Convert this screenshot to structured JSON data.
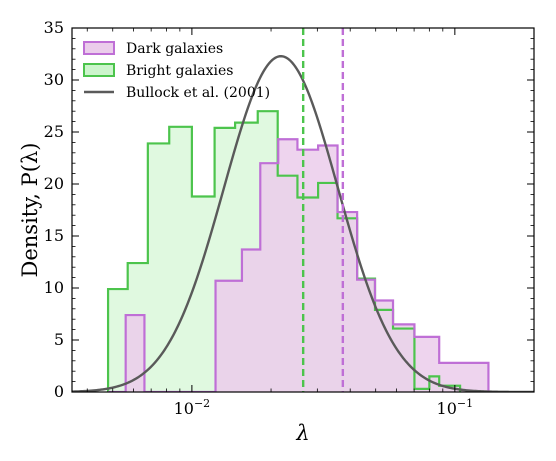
{
  "chart_data": {
    "type": "histogram",
    "xlabel": "λ",
    "ylabel": "Density, P(λ)",
    "xscale": "log",
    "xlim": [
      0.0035,
      0.2
    ],
    "ylim": [
      0,
      35
    ],
    "yticks": [
      0,
      5,
      10,
      15,
      20,
      25,
      30,
      35
    ],
    "xticks": [
      {
        "value": 0.01,
        "base": "10",
        "exp": "−2"
      },
      {
        "value": 0.1,
        "base": "10",
        "exp": "−1"
      }
    ],
    "legend_position": "top-left",
    "series": [
      {
        "name": "Dark galaxies",
        "color": "#bf6fd6",
        "fill": "#ebcdeb",
        "bin_edges": [
          0.0048,
          0.0056,
          0.0066,
          0.0103,
          0.0123,
          0.0155,
          0.0182,
          0.0213,
          0.0252,
          0.0302,
          0.0358,
          0.0425,
          0.0497,
          0.0582,
          0.0702,
          0.0872,
          0.1047,
          0.1342
        ],
        "densities": [
          0.0,
          7.4,
          0.0,
          0.0,
          10.7,
          13.7,
          22.0,
          24.3,
          23.3,
          23.7,
          17.3,
          10.8,
          8.8,
          6.5,
          5.3,
          2.8,
          2.8
        ]
      },
      {
        "name": "Bright galaxies",
        "color": "#4cc44c",
        "fill": "#ccf5cc",
        "bin_edges": [
          0.0048,
          0.0057,
          0.0068,
          0.0082,
          0.01,
          0.0122,
          0.0146,
          0.0178,
          0.0212,
          0.0252,
          0.0302,
          0.0358,
          0.0425,
          0.0497,
          0.0582,
          0.0702,
          0.08,
          0.0872,
          0.1047
        ],
        "densities": [
          9.9,
          12.4,
          23.9,
          25.5,
          18.8,
          25.4,
          25.9,
          27.0,
          20.8,
          18.7,
          20.1,
          16.7,
          10.9,
          7.9,
          6.1,
          0.3,
          1.5,
          0.6
        ]
      },
      {
        "name": "Bullock et al. (2001)",
        "color": "#5a5a5a",
        "model": "lognormal",
        "lambda0": 0.028,
        "sigma": 0.5
      }
    ],
    "vlines": [
      {
        "x": 0.0265,
        "color": "#4cc44c",
        "style": "dashed"
      },
      {
        "x": 0.0375,
        "color": "#bf6fd6",
        "style": "dashed"
      }
    ]
  }
}
